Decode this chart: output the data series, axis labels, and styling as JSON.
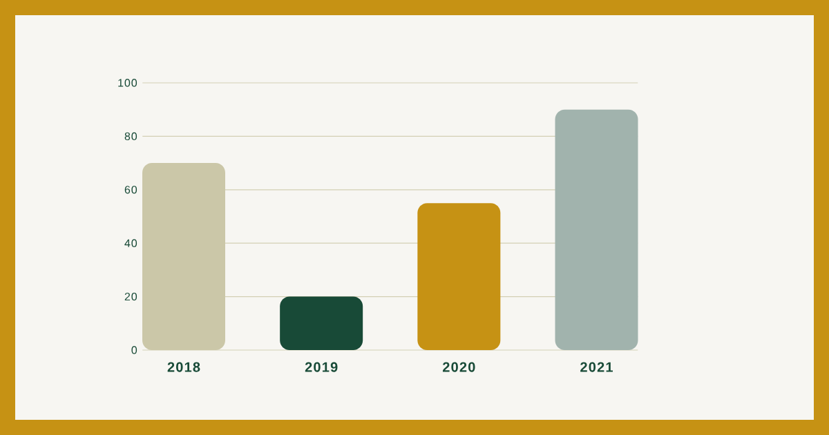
{
  "chart_data": {
    "type": "bar",
    "categories": [
      "2018",
      "2019",
      "2020",
      "2021"
    ],
    "values": [
      70,
      20,
      55,
      90
    ],
    "colors": [
      "#cbc7a8",
      "#184a37",
      "#c69214",
      "#a1b3ad"
    ],
    "ylim": [
      0,
      100
    ],
    "yticks": [
      0,
      20,
      40,
      60,
      80,
      100
    ],
    "grid": "y"
  }
}
